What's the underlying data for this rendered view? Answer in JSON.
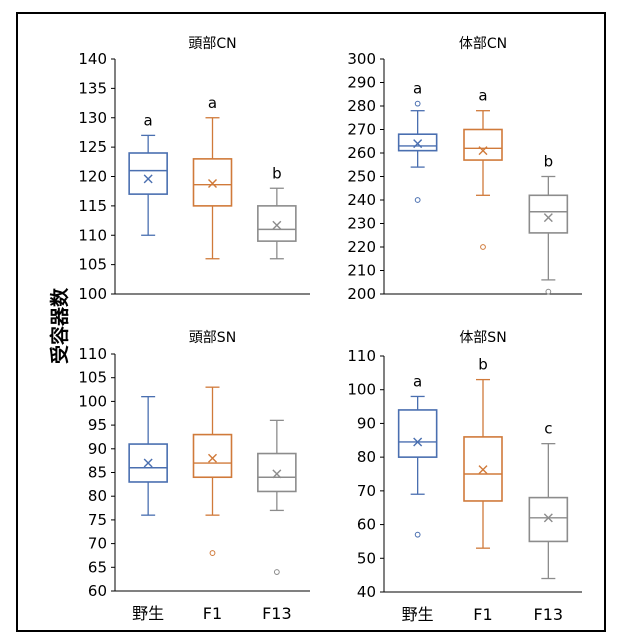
{
  "ylabel": "受容器数",
  "chart_data": [
    {
      "type": "box",
      "title": "頭部CN",
      "categories": [
        "野生",
        "F1",
        "F13"
      ],
      "ylim": [
        100,
        140
      ],
      "yticks": [
        100,
        105,
        110,
        115,
        120,
        125,
        130,
        135,
        140
      ],
      "boxes": [
        {
          "min": 110,
          "q1": 117,
          "median": 121,
          "q3": 124,
          "max": 127,
          "mean": 119.6,
          "outliers": [],
          "letter": "a"
        },
        {
          "min": 106,
          "q1": 115,
          "median": 118.6,
          "q3": 123,
          "max": 130,
          "mean": 118.8,
          "outliers": [],
          "letter": "a"
        },
        {
          "min": 106,
          "q1": 109,
          "median": 111,
          "q3": 115,
          "max": 118,
          "mean": 111.7,
          "outliers": [],
          "letter": "b"
        }
      ]
    },
    {
      "type": "box",
      "title": "体部CN",
      "categories": [
        "野生",
        "F1",
        "F13"
      ],
      "ylim": [
        200,
        300
      ],
      "yticks": [
        200,
        210,
        220,
        230,
        240,
        250,
        260,
        270,
        280,
        290,
        300
      ],
      "boxes": [
        {
          "min": 254,
          "q1": 261,
          "median": 263,
          "q3": 268,
          "max": 278,
          "mean": 264,
          "outliers": [
            240,
            281
          ],
          "letter": "a"
        },
        {
          "min": 242,
          "q1": 257,
          "median": 262,
          "q3": 270,
          "max": 278,
          "mean": 261,
          "outliers": [
            220
          ],
          "letter": "a"
        },
        {
          "min": 206,
          "q1": 226,
          "median": 235,
          "q3": 242,
          "max": 250,
          "mean": 232.5,
          "outliers": [
            201
          ],
          "letter": "b"
        }
      ]
    },
    {
      "type": "box",
      "title": "頭部SN",
      "categories": [
        "野生",
        "F1",
        "F13"
      ],
      "ylim": [
        60,
        110
      ],
      "yticks": [
        60,
        65,
        70,
        75,
        80,
        85,
        90,
        95,
        100,
        105,
        110
      ],
      "boxes": [
        {
          "min": 76,
          "q1": 83,
          "median": 86,
          "q3": 91,
          "max": 101,
          "mean": 87,
          "outliers": [],
          "letter": ""
        },
        {
          "min": 76,
          "q1": 84,
          "median": 87,
          "q3": 93,
          "max": 103,
          "mean": 88,
          "outliers": [
            68
          ],
          "letter": ""
        },
        {
          "min": 77,
          "q1": 81,
          "median": 84,
          "q3": 89,
          "max": 96,
          "mean": 84.7,
          "outliers": [
            64
          ],
          "letter": ""
        }
      ]
    },
    {
      "type": "box",
      "title": "体部SN",
      "categories": [
        "野生",
        "F1",
        "F13"
      ],
      "ylim": [
        40,
        110
      ],
      "yticks": [
        40,
        50,
        60,
        70,
        80,
        90,
        100,
        110
      ],
      "boxes": [
        {
          "min": 69,
          "q1": 80,
          "median": 84.5,
          "q3": 94,
          "max": 98,
          "mean": 84.5,
          "outliers": [
            57
          ],
          "letter": "a"
        },
        {
          "min": 53,
          "q1": 67,
          "median": 75,
          "q3": 86,
          "max": 103,
          "mean": 76.3,
          "outliers": [],
          "letter": "b"
        },
        {
          "min": 44,
          "q1": 55,
          "median": 62,
          "q3": 68,
          "max": 84,
          "mean": 62,
          "outliers": [],
          "letter": "c"
        }
      ]
    }
  ],
  "colors": {
    "野生": "#4a6fb0",
    "F1": "#d07a3a",
    "F13": "#8c8c8c"
  }
}
